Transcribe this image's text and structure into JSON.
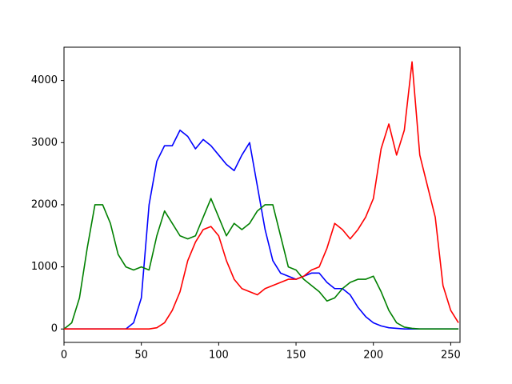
{
  "chart_data": {
    "type": "line",
    "x": [
      0,
      5,
      10,
      15,
      20,
      25,
      30,
      35,
      40,
      45,
      50,
      55,
      60,
      65,
      70,
      75,
      80,
      85,
      90,
      95,
      100,
      105,
      110,
      115,
      120,
      125,
      130,
      135,
      140,
      145,
      150,
      155,
      160,
      165,
      170,
      175,
      180,
      185,
      190,
      195,
      200,
      205,
      210,
      215,
      220,
      225,
      230,
      235,
      240,
      245,
      250,
      255
    ],
    "series": [
      {
        "color": "#0000ff",
        "values": [
          0,
          0,
          0,
          0,
          0,
          0,
          0,
          0,
          0,
          100,
          500,
          2000,
          2700,
          2950,
          2950,
          3200,
          3100,
          2900,
          3050,
          2950,
          2800,
          2650,
          2550,
          2800,
          3000,
          2300,
          1600,
          1100,
          900,
          850,
          800,
          850,
          900,
          900,
          750,
          650,
          650,
          550,
          350,
          200,
          100,
          50,
          20,
          10,
          0,
          0,
          0,
          0,
          0,
          0,
          0,
          0
        ]
      },
      {
        "color": "#008000",
        "values": [
          0,
          100,
          500,
          1300,
          2000,
          2000,
          1700,
          1200,
          1000,
          950,
          1000,
          950,
          1500,
          1900,
          1700,
          1500,
          1450,
          1500,
          1800,
          2100,
          1800,
          1500,
          1700,
          1600,
          1700,
          1900,
          2000,
          2000,
          1500,
          1000,
          950,
          800,
          700,
          600,
          450,
          500,
          650,
          750,
          800,
          800,
          850,
          600,
          300,
          100,
          30,
          10,
          0,
          0,
          0,
          0,
          0,
          0
        ]
      },
      {
        "color": "#ff0000",
        "values": [
          0,
          0,
          0,
          0,
          0,
          0,
          0,
          0,
          0,
          0,
          0,
          0,
          20,
          100,
          300,
          600,
          1100,
          1400,
          1600,
          1650,
          1500,
          1100,
          800,
          650,
          600,
          550,
          650,
          700,
          750,
          800,
          800,
          850,
          950,
          1000,
          1300,
          1700,
          1600,
          1450,
          1600,
          1800,
          2100,
          2900,
          3300,
          2800,
          3200,
          4300,
          2800,
          2300,
          1800,
          700,
          300,
          100
        ]
      }
    ],
    "xlim": [
      0,
      256
    ],
    "ylim": [
      -216,
      4536
    ],
    "xticks": [
      0,
      50,
      100,
      150,
      200,
      250
    ],
    "yticks": [
      0,
      1000,
      2000,
      3000,
      4000
    ]
  }
}
